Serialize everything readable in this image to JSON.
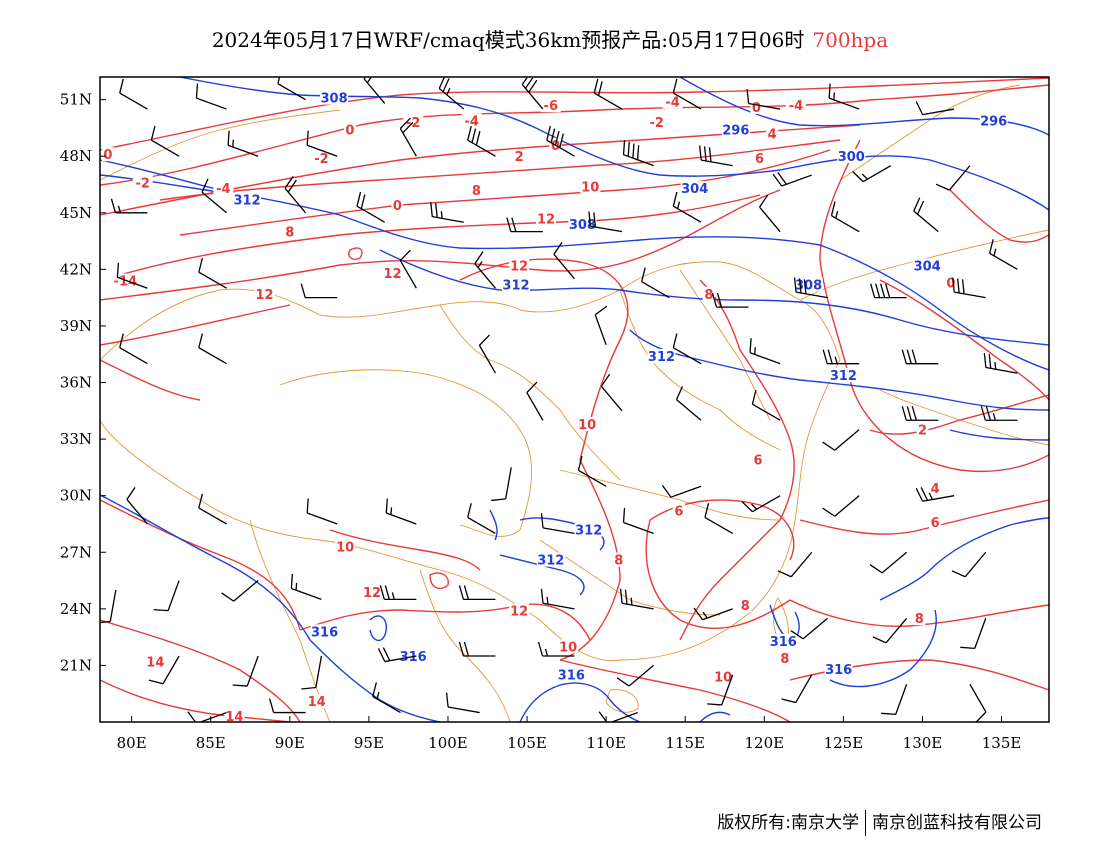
{
  "title": {
    "main": "2024年05月17日WRF/cmaq模式36km预报产品:05月17日06时",
    "level": "700hpa"
  },
  "axes": {
    "x_ticks": [
      "80E",
      "85E",
      "90E",
      "95E",
      "100E",
      "105E",
      "110E",
      "115E",
      "120E",
      "125E",
      "130E",
      "135E"
    ],
    "x_values": [
      80,
      85,
      90,
      95,
      100,
      105,
      110,
      115,
      120,
      125,
      130,
      135
    ],
    "y_ticks": [
      "51N",
      "48N",
      "45N",
      "42N",
      "39N",
      "36N",
      "33N",
      "30N",
      "27N",
      "24N",
      "21N"
    ],
    "y_values": [
      51,
      48,
      45,
      42,
      39,
      36,
      33,
      30,
      27,
      24,
      21
    ],
    "lon_range": [
      78,
      138
    ],
    "lat_range": [
      18,
      52.2
    ]
  },
  "temperature_labels": [
    {
      "text": "0",
      "lon": 78.5,
      "lat": 48
    },
    {
      "text": "-2",
      "lon": 80.7,
      "lat": 46.5
    },
    {
      "text": "-4",
      "lon": 85.8,
      "lat": 46.2
    },
    {
      "text": "-2",
      "lon": 92,
      "lat": 47.8
    },
    {
      "text": "0",
      "lon": 93.8,
      "lat": 49.3
    },
    {
      "text": "-2",
      "lon": 97.8,
      "lat": 49.7
    },
    {
      "text": "-4",
      "lon": 101.5,
      "lat": 49.8
    },
    {
      "text": "-6",
      "lon": 106.5,
      "lat": 50.6
    },
    {
      "text": "-4",
      "lon": 114.2,
      "lat": 50.8
    },
    {
      "text": "-2",
      "lon": 113.2,
      "lat": 49.7
    },
    {
      "text": "0",
      "lon": 119.5,
      "lat": 50.5
    },
    {
      "text": "-4",
      "lon": 122,
      "lat": 50.6
    },
    {
      "text": "4",
      "lon": 120.5,
      "lat": 49.1
    },
    {
      "text": "0",
      "lon": 106.8,
      "lat": 48.5
    },
    {
      "text": "2",
      "lon": 104.5,
      "lat": 47.9
    },
    {
      "text": "6",
      "lon": 119.7,
      "lat": 47.8
    },
    {
      "text": "8",
      "lon": 101.8,
      "lat": 46.1
    },
    {
      "text": "10",
      "lon": 109,
      "lat": 46.3
    },
    {
      "text": "0",
      "lon": 96.8,
      "lat": 45.3
    },
    {
      "text": "8",
      "lon": 90,
      "lat": 43.9
    },
    {
      "text": "12",
      "lon": 106.2,
      "lat": 44.6
    },
    {
      "text": "12",
      "lon": 96.5,
      "lat": 41.7
    },
    {
      "text": "12",
      "lon": 104.5,
      "lat": 42.1
    },
    {
      "text": "-14",
      "lon": 79.6,
      "lat": 41.3
    },
    {
      "text": "12",
      "lon": 88.4,
      "lat": 40.6
    },
    {
      "text": "8",
      "lon": 116.5,
      "lat": 40.6
    },
    {
      "text": "0",
      "lon": 131.8,
      "lat": 41.2
    },
    {
      "text": "10",
      "lon": 108.8,
      "lat": 33.7
    },
    {
      "text": "2",
      "lon": 130,
      "lat": 33.4
    },
    {
      "text": "6",
      "lon": 119.6,
      "lat": 31.8
    },
    {
      "text": "4",
      "lon": 130.8,
      "lat": 30.3
    },
    {
      "text": "6",
      "lon": 130.8,
      "lat": 28.5
    },
    {
      "text": "6",
      "lon": 114.6,
      "lat": 29.1
    },
    {
      "text": "10",
      "lon": 93.5,
      "lat": 27.2
    },
    {
      "text": "8",
      "lon": 110.8,
      "lat": 26.5
    },
    {
      "text": "12",
      "lon": 95.2,
      "lat": 24.8
    },
    {
      "text": "12",
      "lon": 104.5,
      "lat": 23.8
    },
    {
      "text": "8",
      "lon": 118.8,
      "lat": 24.1
    },
    {
      "text": "8",
      "lon": 129.8,
      "lat": 23.4
    },
    {
      "text": "10",
      "lon": 107.6,
      "lat": 21.9
    },
    {
      "text": "8",
      "lon": 121.3,
      "lat": 21.3
    },
    {
      "text": "14",
      "lon": 81.5,
      "lat": 21.1
    },
    {
      "text": "10",
      "lon": 117.4,
      "lat": 20.3
    },
    {
      "text": "14",
      "lon": 91.7,
      "lat": 19
    },
    {
      "text": "14",
      "lon": 86.5,
      "lat": 18.2
    }
  ],
  "height_labels": [
    {
      "text": "308",
      "lon": 92.8,
      "lat": 51
    },
    {
      "text": "296",
      "lon": 118.2,
      "lat": 49.3
    },
    {
      "text": "296",
      "lon": 134.5,
      "lat": 49.8
    },
    {
      "text": "300",
      "lon": 125.5,
      "lat": 47.9
    },
    {
      "text": "304",
      "lon": 115.6,
      "lat": 46.2
    },
    {
      "text": "312",
      "lon": 87.3,
      "lat": 45.6
    },
    {
      "text": "308",
      "lon": 108.5,
      "lat": 44.3
    },
    {
      "text": "304",
      "lon": 130.3,
      "lat": 42.1
    },
    {
      "text": "312",
      "lon": 104.3,
      "lat": 41.1
    },
    {
      "text": "308",
      "lon": 122.8,
      "lat": 41.1
    },
    {
      "text": "312",
      "lon": 113.5,
      "lat": 37.3
    },
    {
      "text": "312",
      "lon": 125,
      "lat": 36.3
    },
    {
      "text": "312",
      "lon": 108.9,
      "lat": 28.1
    },
    {
      "text": "312",
      "lon": 106.5,
      "lat": 26.5
    },
    {
      "text": "316",
      "lon": 92.2,
      "lat": 22.7
    },
    {
      "text": "316",
      "lon": 97.8,
      "lat": 21.4
    },
    {
      "text": "316",
      "lon": 121.2,
      "lat": 22.2
    },
    {
      "text": "316",
      "lon": 107.8,
      "lat": 20.4
    },
    {
      "text": "316",
      "lon": 124.7,
      "lat": 20.7
    }
  ],
  "wind_barbs": [
    {
      "lon": 81,
      "lat": 50.5,
      "dir": 300,
      "kt": 10
    },
    {
      "lon": 86,
      "lat": 50.5,
      "dir": 290,
      "kt": 10
    },
    {
      "lon": 91,
      "lat": 51,
      "dir": 300,
      "kt": 10
    },
    {
      "lon": 96,
      "lat": 50.8,
      "dir": 320,
      "kt": 20
    },
    {
      "lon": 101,
      "lat": 50.5,
      "dir": 310,
      "kt": 25
    },
    {
      "lon": 106,
      "lat": 50.5,
      "dir": 320,
      "kt": 30
    },
    {
      "lon": 111,
      "lat": 50.5,
      "dir": 300,
      "kt": 20
    },
    {
      "lon": 116,
      "lat": 50.5,
      "dir": 300,
      "kt": 10
    },
    {
      "lon": 121,
      "lat": 50.5,
      "dir": 280,
      "kt": 10
    },
    {
      "lon": 126,
      "lat": 50.5,
      "dir": 290,
      "kt": 15
    },
    {
      "lon": 132,
      "lat": 50.5,
      "dir": 260,
      "kt": 10
    },
    {
      "lon": 83,
      "lat": 48,
      "dir": 300,
      "kt": 10
    },
    {
      "lon": 88,
      "lat": 48,
      "dir": 290,
      "kt": 15
    },
    {
      "lon": 93,
      "lat": 48,
      "dir": 290,
      "kt": 10
    },
    {
      "lon": 98,
      "lat": 48,
      "dir": 330,
      "kt": 20
    },
    {
      "lon": 103,
      "lat": 48,
      "dir": 300,
      "kt": 30
    },
    {
      "lon": 108,
      "lat": 48,
      "dir": 300,
      "kt": 40
    },
    {
      "lon": 113,
      "lat": 47.5,
      "dir": 290,
      "kt": 40
    },
    {
      "lon": 118,
      "lat": 47.5,
      "dir": 280,
      "kt": 30
    },
    {
      "lon": 123,
      "lat": 47,
      "dir": 250,
      "kt": 20
    },
    {
      "lon": 128,
      "lat": 47.5,
      "dir": 240,
      "kt": 15
    },
    {
      "lon": 133,
      "lat": 47.5,
      "dir": 220,
      "kt": 10
    },
    {
      "lon": 81,
      "lat": 45,
      "dir": 270,
      "kt": 15
    },
    {
      "lon": 86,
      "lat": 45,
      "dir": 310,
      "kt": 10
    },
    {
      "lon": 91,
      "lat": 45,
      "dir": 320,
      "kt": 20
    },
    {
      "lon": 96,
      "lat": 44.5,
      "dir": 300,
      "kt": 20
    },
    {
      "lon": 101,
      "lat": 44.5,
      "dir": 280,
      "kt": 25
    },
    {
      "lon": 106,
      "lat": 44,
      "dir": 270,
      "kt": 20
    },
    {
      "lon": 111,
      "lat": 44,
      "dir": 280,
      "kt": 20
    },
    {
      "lon": 116,
      "lat": 44.5,
      "dir": 300,
      "kt": 15
    },
    {
      "lon": 121,
      "lat": 44,
      "dir": 320,
      "kt": 10
    },
    {
      "lon": 126,
      "lat": 44,
      "dir": 300,
      "kt": 15
    },
    {
      "lon": 131,
      "lat": 44,
      "dir": 310,
      "kt": 20
    },
    {
      "lon": 136,
      "lat": 42,
      "dir": 300,
      "kt": 15
    },
    {
      "lon": 81,
      "lat": 41,
      "dir": 290,
      "kt": 10
    },
    {
      "lon": 86,
      "lat": 41,
      "dir": 300,
      "kt": 10
    },
    {
      "lon": 93,
      "lat": 40.5,
      "dir": 270,
      "kt": 10
    },
    {
      "lon": 98,
      "lat": 41,
      "dir": 330,
      "kt": 10
    },
    {
      "lon": 103,
      "lat": 41,
      "dir": 320,
      "kt": 15
    },
    {
      "lon": 108,
      "lat": 41.5,
      "dir": 320,
      "kt": 10
    },
    {
      "lon": 114,
      "lat": 40.5,
      "dir": 300,
      "kt": 10
    },
    {
      "lon": 119,
      "lat": 40,
      "dir": 270,
      "kt": 20
    },
    {
      "lon": 124,
      "lat": 40.5,
      "dir": 280,
      "kt": 30
    },
    {
      "lon": 129,
      "lat": 40.5,
      "dir": 270,
      "kt": 40
    },
    {
      "lon": 134,
      "lat": 40.5,
      "dir": 280,
      "kt": 30
    },
    {
      "lon": 81,
      "lat": 37,
      "dir": 300,
      "kt": 10
    },
    {
      "lon": 86,
      "lat": 37,
      "dir": 300,
      "kt": 10
    },
    {
      "lon": 103,
      "lat": 36.5,
      "dir": 330,
      "kt": 10
    },
    {
      "lon": 110,
      "lat": 38,
      "dir": 340,
      "kt": 10
    },
    {
      "lon": 116,
      "lat": 37,
      "dir": 300,
      "kt": 10
    },
    {
      "lon": 121,
      "lat": 37,
      "dir": 290,
      "kt": 15
    },
    {
      "lon": 126,
      "lat": 37,
      "dir": 270,
      "kt": 25
    },
    {
      "lon": 131,
      "lat": 37,
      "dir": 270,
      "kt": 30
    },
    {
      "lon": 136,
      "lat": 36.5,
      "dir": 280,
      "kt": 25
    },
    {
      "lon": 106,
      "lat": 34,
      "dir": 330,
      "kt": 10
    },
    {
      "lon": 111,
      "lat": 34.5,
      "dir": 320,
      "kt": 10
    },
    {
      "lon": 116,
      "lat": 34,
      "dir": 310,
      "kt": 10
    },
    {
      "lon": 121,
      "lat": 34,
      "dir": 300,
      "kt": 10
    },
    {
      "lon": 126,
      "lat": 33.5,
      "dir": 230,
      "kt": 10
    },
    {
      "lon": 131,
      "lat": 34,
      "dir": 270,
      "kt": 30
    },
    {
      "lon": 136,
      "lat": 34,
      "dir": 270,
      "kt": 25
    },
    {
      "lon": 104,
      "lat": 31.5,
      "dir": 190,
      "kt": 10
    },
    {
      "lon": 110,
      "lat": 30.5,
      "dir": 300,
      "kt": 10
    },
    {
      "lon": 116,
      "lat": 30.5,
      "dir": 250,
      "kt": 10
    },
    {
      "lon": 121,
      "lat": 30,
      "dir": 240,
      "kt": 15
    },
    {
      "lon": 126,
      "lat": 30,
      "dir": 230,
      "kt": 10
    },
    {
      "lon": 132,
      "lat": 30,
      "dir": 260,
      "kt": 25
    },
    {
      "lon": 81,
      "lat": 28.5,
      "dir": 320,
      "kt": 10
    },
    {
      "lon": 86,
      "lat": 28.5,
      "dir": 300,
      "kt": 10
    },
    {
      "lon": 93,
      "lat": 28.5,
      "dir": 290,
      "kt": 10
    },
    {
      "lon": 98,
      "lat": 28.5,
      "dir": 290,
      "kt": 15
    },
    {
      "lon": 103,
      "lat": 28,
      "dir": 300,
      "kt": 10
    },
    {
      "lon": 108,
      "lat": 28,
      "dir": 280,
      "kt": 10
    },
    {
      "lon": 113,
      "lat": 28,
      "dir": 290,
      "kt": 10
    },
    {
      "lon": 118,
      "lat": 28,
      "dir": 300,
      "kt": 10
    },
    {
      "lon": 123,
      "lat": 27,
      "dir": 220,
      "kt": 10
    },
    {
      "lon": 129,
      "lat": 27,
      "dir": 230,
      "kt": 10
    },
    {
      "lon": 134,
      "lat": 27,
      "dir": 220,
      "kt": 10
    },
    {
      "lon": 79,
      "lat": 25,
      "dir": 190,
      "kt": 10
    },
    {
      "lon": 83,
      "lat": 25.5,
      "dir": 200,
      "kt": 10
    },
    {
      "lon": 88,
      "lat": 25.5,
      "dir": 230,
      "kt": 10
    },
    {
      "lon": 92,
      "lat": 24.5,
      "dir": 290,
      "kt": 15
    },
    {
      "lon": 98,
      "lat": 24.5,
      "dir": 270,
      "kt": 25
    },
    {
      "lon": 103,
      "lat": 24.5,
      "dir": 270,
      "kt": 20
    },
    {
      "lon": 108,
      "lat": 24,
      "dir": 280,
      "kt": 15
    },
    {
      "lon": 113,
      "lat": 24,
      "dir": 280,
      "kt": 25
    },
    {
      "lon": 118,
      "lat": 24,
      "dir": 250,
      "kt": 15
    },
    {
      "lon": 124,
      "lat": 23.5,
      "dir": 230,
      "kt": 10
    },
    {
      "lon": 129,
      "lat": 23.5,
      "dir": 220,
      "kt": 10
    },
    {
      "lon": 134,
      "lat": 23.5,
      "dir": 200,
      "kt": 10
    },
    {
      "lon": 83,
      "lat": 21.5,
      "dir": 210,
      "kt": 10
    },
    {
      "lon": 88,
      "lat": 21.5,
      "dir": 200,
      "kt": 10
    },
    {
      "lon": 92,
      "lat": 21.5,
      "dir": 190,
      "kt": 10
    },
    {
      "lon": 98,
      "lat": 21.5,
      "dir": 260,
      "kt": 20
    },
    {
      "lon": 103,
      "lat": 21.5,
      "dir": 270,
      "kt": 20
    },
    {
      "lon": 108,
      "lat": 21.5,
      "dir": 270,
      "kt": 15
    },
    {
      "lon": 113,
      "lat": 21,
      "dir": 230,
      "kt": 10
    },
    {
      "lon": 118,
      "lat": 20.5,
      "dir": 200,
      "kt": 10
    },
    {
      "lon": 123,
      "lat": 20.5,
      "dir": 210,
      "kt": 10
    },
    {
      "lon": 129,
      "lat": 20,
      "dir": 200,
      "kt": 10
    },
    {
      "lon": 133,
      "lat": 20,
      "dir": 150,
      "kt": 10
    },
    {
      "lon": 86,
      "lat": 18.5,
      "dir": 250,
      "kt": 10
    },
    {
      "lon": 91,
      "lat": 18.5,
      "dir": 270,
      "kt": 10
    },
    {
      "lon": 97,
      "lat": 18.5,
      "dir": 300,
      "kt": 15
    },
    {
      "lon": 102,
      "lat": 18.5,
      "dir": 280,
      "kt": 10
    },
    {
      "lon": 112,
      "lat": 18.5,
      "dir": 250,
      "kt": 10
    }
  ],
  "colors": {
    "temperature": "#e83a3a",
    "height": "#1f3fd8",
    "boundary": "#e8953a",
    "wind": "#000000"
  },
  "footer": {
    "left": "版权所有:南京大学",
    "right": "南京创蓝科技有限公司"
  }
}
